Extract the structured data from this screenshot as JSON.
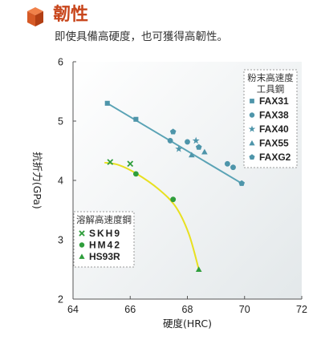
{
  "header": {
    "title": "韌性",
    "subtitle": "即使具備高硬度，也可獲得高韌性。",
    "accent_color": "#c8461c",
    "icon": "orange-cube-icon"
  },
  "chart_data": {
    "type": "scatter",
    "xlabel": "硬度(HRC)",
    "ylabel": "抗折力(GPa)",
    "xlim": [
      64,
      72
    ],
    "ylim": [
      2,
      6
    ],
    "xticks": [
      64,
      66,
      68,
      70,
      72
    ],
    "yticks": [
      2,
      3,
      4,
      5,
      6
    ],
    "grid": false,
    "background_gradient": [
      "#ffffff",
      "#e3e8ea"
    ],
    "legends": [
      {
        "title_lines": [
          "粉末高速度",
          "工具鋼"
        ],
        "placement": "top-right",
        "entries": [
          "FAX31",
          "FAX38",
          "FAX40",
          "FAX55",
          "FAXG2"
        ]
      },
      {
        "title_lines": [
          "溶解高速度鋼"
        ],
        "placement": "bottom-left",
        "entries": [
          "SKH9",
          "HM42",
          "HS93R"
        ]
      }
    ],
    "trend_lines": [
      {
        "name": "powder-trend",
        "color": "#5aa3b5",
        "points": [
          [
            65.2,
            5.3
          ],
          [
            69.9,
            3.95
          ]
        ]
      },
      {
        "name": "melted-trend",
        "color": "#e8e020",
        "points": [
          [
            65.1,
            4.3
          ],
          [
            65.6,
            4.26
          ],
          [
            66.2,
            4.12
          ],
          [
            67.0,
            3.85
          ],
          [
            67.6,
            3.55
          ],
          [
            68.05,
            3.1
          ],
          [
            68.4,
            2.5
          ]
        ]
      }
    ],
    "series": [
      {
        "name": "FAX31",
        "marker": "square",
        "color": "#4e95aa",
        "points": [
          [
            65.2,
            5.3
          ],
          [
            66.2,
            5.03
          ]
        ]
      },
      {
        "name": "FAX38",
        "marker": "circle",
        "color": "#4e95aa",
        "points": [
          [
            67.4,
            4.67
          ],
          [
            68.0,
            4.65
          ],
          [
            69.4,
            4.28
          ],
          [
            69.6,
            4.22
          ]
        ]
      },
      {
        "name": "FAX40",
        "marker": "star",
        "color": "#4e95aa",
        "points": [
          [
            67.7,
            4.53
          ],
          [
            68.3,
            4.67
          ]
        ]
      },
      {
        "name": "FAX55",
        "marker": "triangle",
        "color": "#4e95aa",
        "points": [
          [
            68.15,
            4.43
          ],
          [
            68.6,
            4.48
          ]
        ]
      },
      {
        "name": "FAXG2",
        "marker": "pentagon",
        "color": "#4e95aa",
        "points": [
          [
            67.5,
            4.82
          ],
          [
            68.4,
            4.56
          ],
          [
            69.9,
            3.95
          ]
        ]
      },
      {
        "name": "SKH9",
        "marker": "cross",
        "color": "#2f9e3c",
        "points": [
          [
            65.3,
            4.31
          ],
          [
            66.0,
            4.28
          ]
        ]
      },
      {
        "name": "HM42",
        "marker": "circle",
        "color": "#2f9e3c",
        "points": [
          [
            66.2,
            4.11
          ],
          [
            67.5,
            3.68
          ]
        ]
      },
      {
        "name": "HS93R",
        "marker": "triangle",
        "color": "#2f9e3c",
        "points": [
          [
            68.4,
            2.5
          ]
        ]
      }
    ]
  }
}
